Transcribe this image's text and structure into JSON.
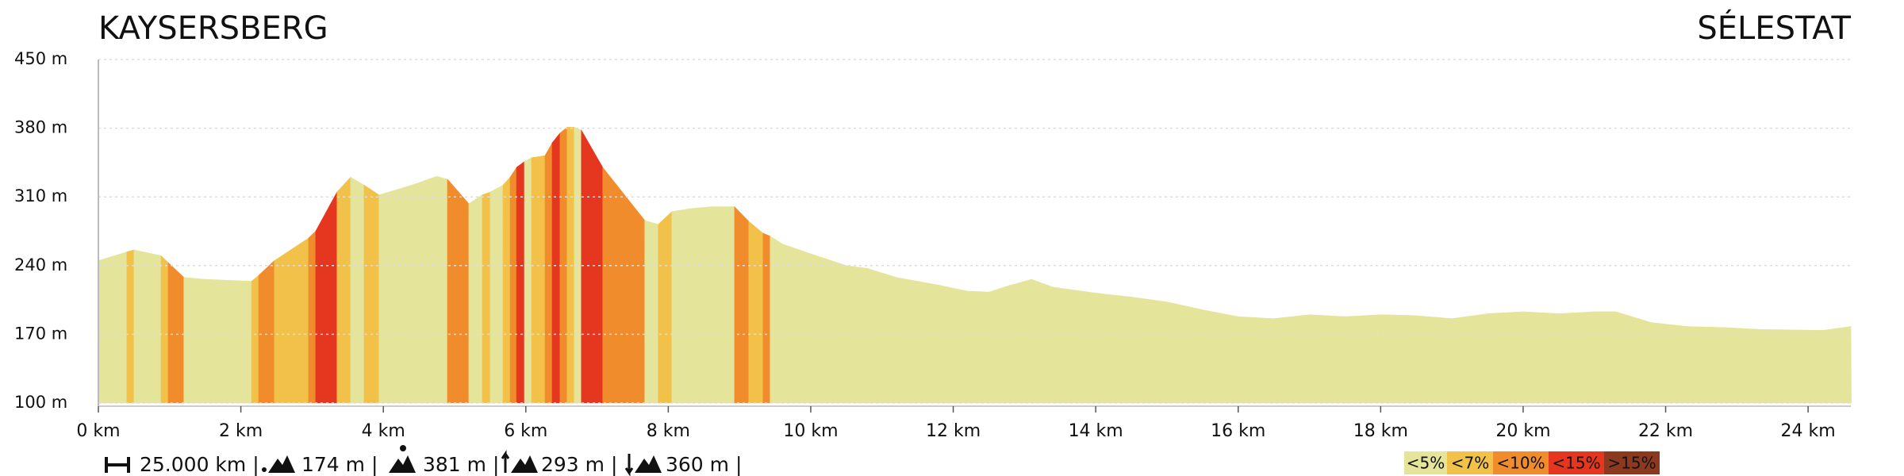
{
  "chart_data": {
    "type": "elevation-profile",
    "title_start": "KAYSERSBERG",
    "title_end": "SÉLESTAT",
    "x": [
      0,
      0.4,
      0.5,
      0.88,
      0.98,
      1.2,
      1.5,
      2.15,
      2.25,
      2.47,
      2.95,
      3.05,
      3.35,
      3.54,
      3.73,
      3.94,
      4.4,
      4.75,
      4.9,
      5.2,
      5.39,
      5.5,
      5.68,
      5.78,
      5.87,
      5.98,
      6.08,
      6.27,
      6.37,
      6.48,
      6.58,
      6.68,
      6.78,
      7.08,
      7.67,
      7.86,
      8.05,
      8.3,
      8.6,
      8.93,
      9.13,
      9.33,
      9.43,
      9.6,
      10,
      10.5,
      10.8,
      11.2,
      11.8,
      12.2,
      12.5,
      12.8,
      13.1,
      13.4,
      14,
      14.5,
      15,
      15.5,
      16,
      16.5,
      17,
      17.5,
      18,
      18.5,
      19,
      19.5,
      20,
      20.5,
      21,
      21.3,
      21.8,
      22.3,
      22.8,
      23.3,
      24.2,
      24.6
    ],
    "series": [
      {
        "values": [
          245,
          254,
          256,
          250,
          243,
          228,
          226,
          224,
          230,
          245,
          268,
          275,
          315,
          330,
          322,
          312,
          322,
          331,
          328,
          303,
          312,
          315,
          322,
          330,
          340,
          346,
          350,
          352,
          365,
          375,
          381,
          381,
          378,
          340,
          286,
          282,
          295,
          298,
          300,
          300,
          285,
          273,
          270,
          262,
          252,
          240,
          237,
          228,
          220,
          214,
          213,
          220,
          226,
          218,
          212,
          208,
          203,
          195,
          188,
          186,
          190,
          188,
          190,
          189,
          186,
          191,
          193,
          191,
          193,
          193,
          182,
          178,
          177,
          175,
          174,
          178
        ],
        "gradient_class": [
          0,
          1,
          0,
          1,
          2,
          0,
          0,
          1,
          2,
          1,
          2,
          3,
          1,
          0,
          1,
          0,
          0,
          0,
          2,
          0,
          1,
          0,
          1,
          2,
          3,
          0,
          1,
          2,
          3,
          2,
          1,
          0,
          3,
          2,
          0,
          1,
          0,
          0,
          0,
          2,
          1,
          2,
          0,
          0,
          0,
          0,
          0,
          0,
          0,
          0,
          0,
          0,
          0,
          0,
          0,
          0,
          0,
          0,
          0,
          0,
          0,
          0,
          0,
          0,
          0,
          0,
          0,
          0,
          0,
          0,
          0,
          0,
          0,
          0,
          0,
          0
        ]
      }
    ],
    "legend": [
      {
        "label": "<5%",
        "color": "#e4e49a"
      },
      {
        "label": "<7%",
        "color": "#f2c14a"
      },
      {
        "label": "<10%",
        "color": "#f18c2d"
      },
      {
        "label": "<15%",
        "color": "#e5361f"
      },
      {
        "label": ">15%",
        "color": "#8b3a1f"
      }
    ],
    "xlim": [
      0,
      24.6
    ],
    "xticks": [
      {
        "value": 0,
        "label": "0 km"
      },
      {
        "value": 2,
        "label": "2 km"
      },
      {
        "value": 4,
        "label": "4 km"
      },
      {
        "value": 6,
        "label": "6 km"
      },
      {
        "value": 8,
        "label": "8 km"
      },
      {
        "value": 10,
        "label": "10 km"
      },
      {
        "value": 12,
        "label": "12 km"
      },
      {
        "value": 14,
        "label": "14 km"
      },
      {
        "value": 16,
        "label": "16 km"
      },
      {
        "value": 18,
        "label": "18 km"
      },
      {
        "value": 20,
        "label": "20 km"
      },
      {
        "value": 22,
        "label": "22 km"
      },
      {
        "value": 24,
        "label": "24 km"
      }
    ],
    "ylim": [
      100,
      450
    ],
    "yticks": [
      {
        "value": 100,
        "label": "100 m"
      },
      {
        "value": 170,
        "label": "170 m"
      },
      {
        "value": 240,
        "label": "240 m"
      },
      {
        "value": 310,
        "label": "310 m"
      },
      {
        "value": 380,
        "label": "380 m"
      },
      {
        "value": 450,
        "label": "450 m"
      }
    ],
    "grid": true,
    "stats": [
      "25.000 km |",
      "174 m |",
      "381 m |",
      "293 m |",
      "360 m |"
    ]
  }
}
